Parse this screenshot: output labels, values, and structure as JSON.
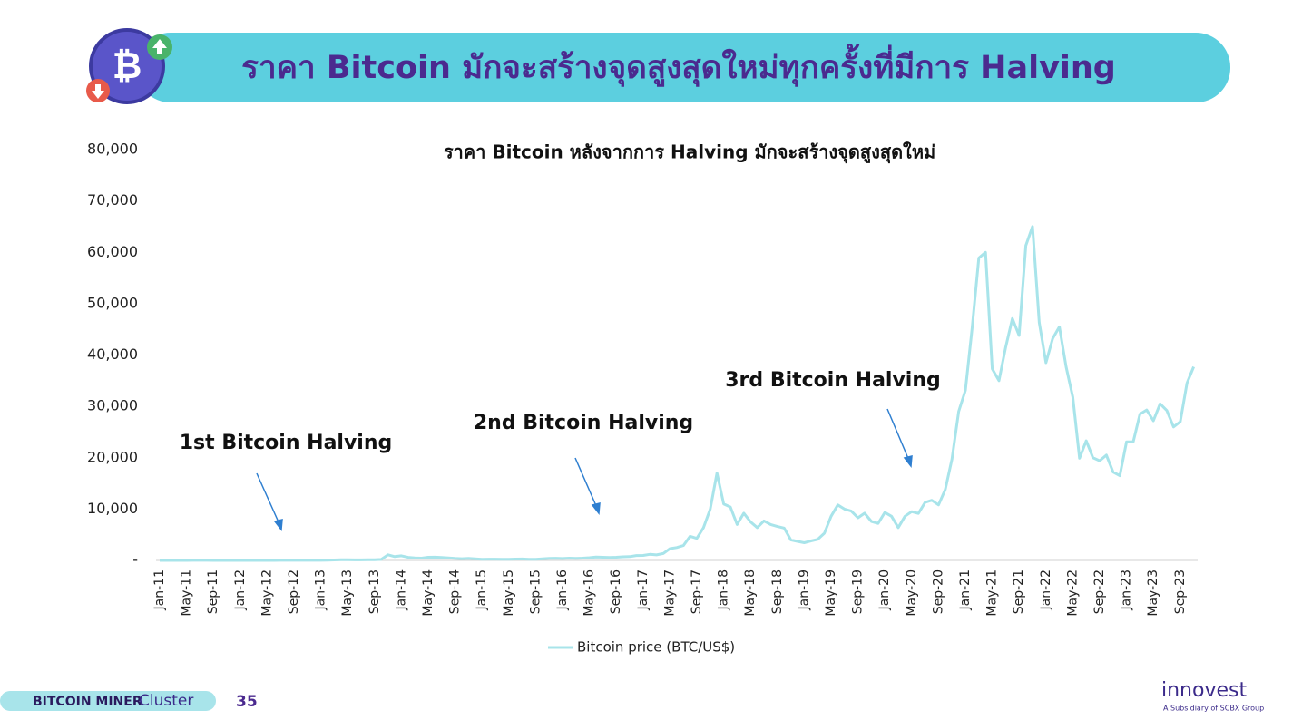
{
  "header": {
    "title": "ราคา Bitcoin มักจะสร้างจุดสูงสุดใหม่ทุกครั้งที่มีการ Halving"
  },
  "footer": {
    "brand_bold": "BITCOIN MINER",
    "brand_light": "Cluster",
    "page": "35",
    "logo": "innovest",
    "logo_sub": "A Subsidiary of SCBX Group"
  },
  "chart_data": {
    "type": "line",
    "title": "ราคา Bitcoin หลังจากการ Halving มักจะสร้างจุดสูงสุดใหม่",
    "categories": [
      "Jan-11",
      null,
      null,
      null,
      "May-11",
      null,
      null,
      null,
      "Sep-11",
      null,
      null,
      null,
      "Jan-12",
      null,
      null,
      null,
      "May-12",
      null,
      null,
      null,
      "Sep-12",
      null,
      null,
      null,
      "Jan-13",
      null,
      null,
      null,
      "May-13",
      null,
      null,
      null,
      "Sep-13",
      null,
      null,
      null,
      "Jan-14",
      null,
      null,
      null,
      "May-14",
      null,
      null,
      null,
      "Sep-14",
      null,
      null,
      null,
      "Jan-15",
      null,
      null,
      null,
      "May-15",
      null,
      null,
      null,
      "Sep-15",
      null,
      null,
      null,
      "Jan-16",
      null,
      null,
      null,
      "May-16",
      null,
      null,
      null,
      "Sep-16",
      null,
      null,
      null,
      "Jan-17",
      null,
      null,
      null,
      "May-17",
      null,
      null,
      null,
      "Sep-17",
      null,
      null,
      null,
      "Jan-18",
      null,
      null,
      null,
      "May-18",
      null,
      null,
      null,
      "Sep-18",
      null,
      null,
      null,
      "Jan-19",
      null,
      null,
      null,
      "May-19",
      null,
      null,
      null,
      "Sep-19",
      null,
      null,
      null,
      "Jan-20",
      null,
      null,
      null,
      "May-20",
      null,
      null,
      null,
      "Sep-20",
      null,
      null,
      null,
      "Jan-21",
      null,
      null,
      null,
      "May-21",
      null,
      null,
      null,
      "Sep-21",
      null,
      null,
      null,
      "Jan-22",
      null,
      null,
      null,
      "May-22",
      null,
      null,
      null,
      "Sep-22",
      null,
      null,
      null,
      "Jan-23",
      null,
      null,
      null,
      "May-23",
      null,
      null,
      null,
      "Sep-23",
      null,
      null
    ],
    "series": [
      {
        "name": "Bitcoin price (BTC/US$)",
        "color": "#a8e4ea",
        "values": [
          0.3,
          1,
          0.8,
          3,
          8,
          17,
          14,
          9,
          5,
          3,
          3,
          4,
          6,
          5,
          5,
          5,
          5,
          7,
          9,
          10,
          12,
          11,
          12,
          13,
          20,
          33,
          90,
          140,
          130,
          100,
          100,
          130,
          135,
          200,
          1100,
          750,
          900,
          600,
          480,
          450,
          620,
          640,
          590,
          480,
          390,
          340,
          380,
          320,
          230,
          250,
          245,
          235,
          230,
          260,
          285,
          230,
          236,
          315,
          380,
          430,
          370,
          435,
          415,
          450,
          530,
          670,
          625,
          575,
          610,
          700,
          740,
          960,
          970,
          1190,
          1080,
          1350,
          2300,
          2500,
          2900,
          4700,
          4300,
          6400,
          10000,
          17000,
          11000,
          10400,
          7000,
          9200,
          7500,
          6400,
          7700,
          7000,
          6600,
          6300,
          4000,
          3700,
          3450,
          3800,
          4100,
          5300,
          8600,
          10800,
          10000,
          9600,
          8300,
          9200,
          7600,
          7200,
          9350,
          8600,
          6400,
          8600,
          9500,
          9150,
          11300,
          11700,
          10800,
          13800,
          19700,
          29000,
          33100,
          45200,
          58900,
          60000,
          37300,
          35000,
          41500,
          47100,
          43800,
          61300,
          65000,
          46300,
          38500,
          43200,
          45500,
          37700,
          31800,
          19900,
          23300,
          20000,
          19400,
          20500,
          17200,
          16500,
          23100,
          23100,
          28500,
          29300,
          27200,
          30500,
          29200,
          26000,
          27000,
          34500,
          37700
        ]
      }
    ],
    "ylim": [
      0,
      80000
    ],
    "yticks": [
      {
        "value": 0,
        "label": "-"
      },
      {
        "value": 10000,
        "label": "10,000"
      },
      {
        "value": 20000,
        "label": "20,000"
      },
      {
        "value": 30000,
        "label": "30,000"
      },
      {
        "value": 40000,
        "label": "40,000"
      },
      {
        "value": 50000,
        "label": "50,000"
      },
      {
        "value": 60000,
        "label": "60,000"
      },
      {
        "value": 70000,
        "label": "70,000"
      },
      {
        "value": 80000,
        "label": "80,000"
      }
    ],
    "annotations": [
      "1st Bitcoin Halving",
      "2nd Bitcoin Halving",
      "3rd Bitcoin Halving"
    ],
    "legend": "bottom"
  }
}
